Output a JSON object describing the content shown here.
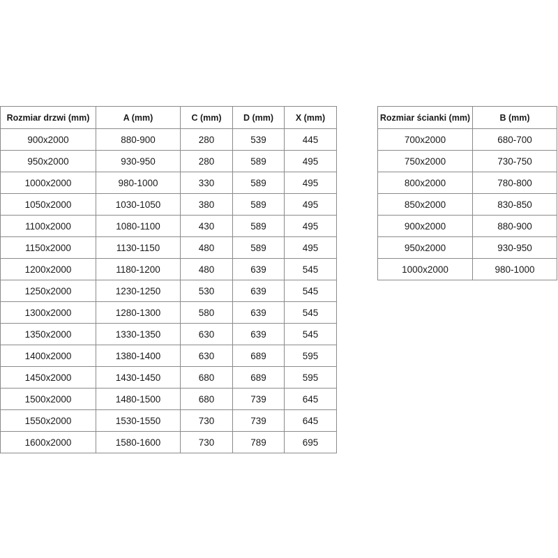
{
  "door_table": {
    "headers": [
      "Rozmiar drzwi (mm)",
      "A (mm)",
      "C (mm)",
      "D (mm)",
      "X (mm)"
    ],
    "rows": [
      [
        "900x2000",
        "880-900",
        "280",
        "539",
        "445"
      ],
      [
        "950x2000",
        "930-950",
        "280",
        "589",
        "495"
      ],
      [
        "1000x2000",
        "980-1000",
        "330",
        "589",
        "495"
      ],
      [
        "1050x2000",
        "1030-1050",
        "380",
        "589",
        "495"
      ],
      [
        "1100x2000",
        "1080-1100",
        "430",
        "589",
        "495"
      ],
      [
        "1150x2000",
        "1130-1150",
        "480",
        "589",
        "495"
      ],
      [
        "1200x2000",
        "1180-1200",
        "480",
        "639",
        "545"
      ],
      [
        "1250x2000",
        "1230-1250",
        "530",
        "639",
        "545"
      ],
      [
        "1300x2000",
        "1280-1300",
        "580",
        "639",
        "545"
      ],
      [
        "1350x2000",
        "1330-1350",
        "630",
        "639",
        "545"
      ],
      [
        "1400x2000",
        "1380-1400",
        "630",
        "689",
        "595"
      ],
      [
        "1450x2000",
        "1430-1450",
        "680",
        "689",
        "595"
      ],
      [
        "1500x2000",
        "1480-1500",
        "680",
        "739",
        "645"
      ],
      [
        "1550x2000",
        "1530-1550",
        "730",
        "739",
        "645"
      ],
      [
        "1600x2000",
        "1580-1600",
        "730",
        "789",
        "695"
      ]
    ]
  },
  "wall_table": {
    "headers": [
      "Rozmiar ścianki (mm)",
      "B (mm)"
    ],
    "rows": [
      [
        "700x2000",
        "680-700"
      ],
      [
        "750x2000",
        "730-750"
      ],
      [
        "800x2000",
        "780-800"
      ],
      [
        "850x2000",
        "830-850"
      ],
      [
        "900x2000",
        "880-900"
      ],
      [
        "950x2000",
        "930-950"
      ],
      [
        "1000x2000",
        "980-1000"
      ]
    ]
  }
}
